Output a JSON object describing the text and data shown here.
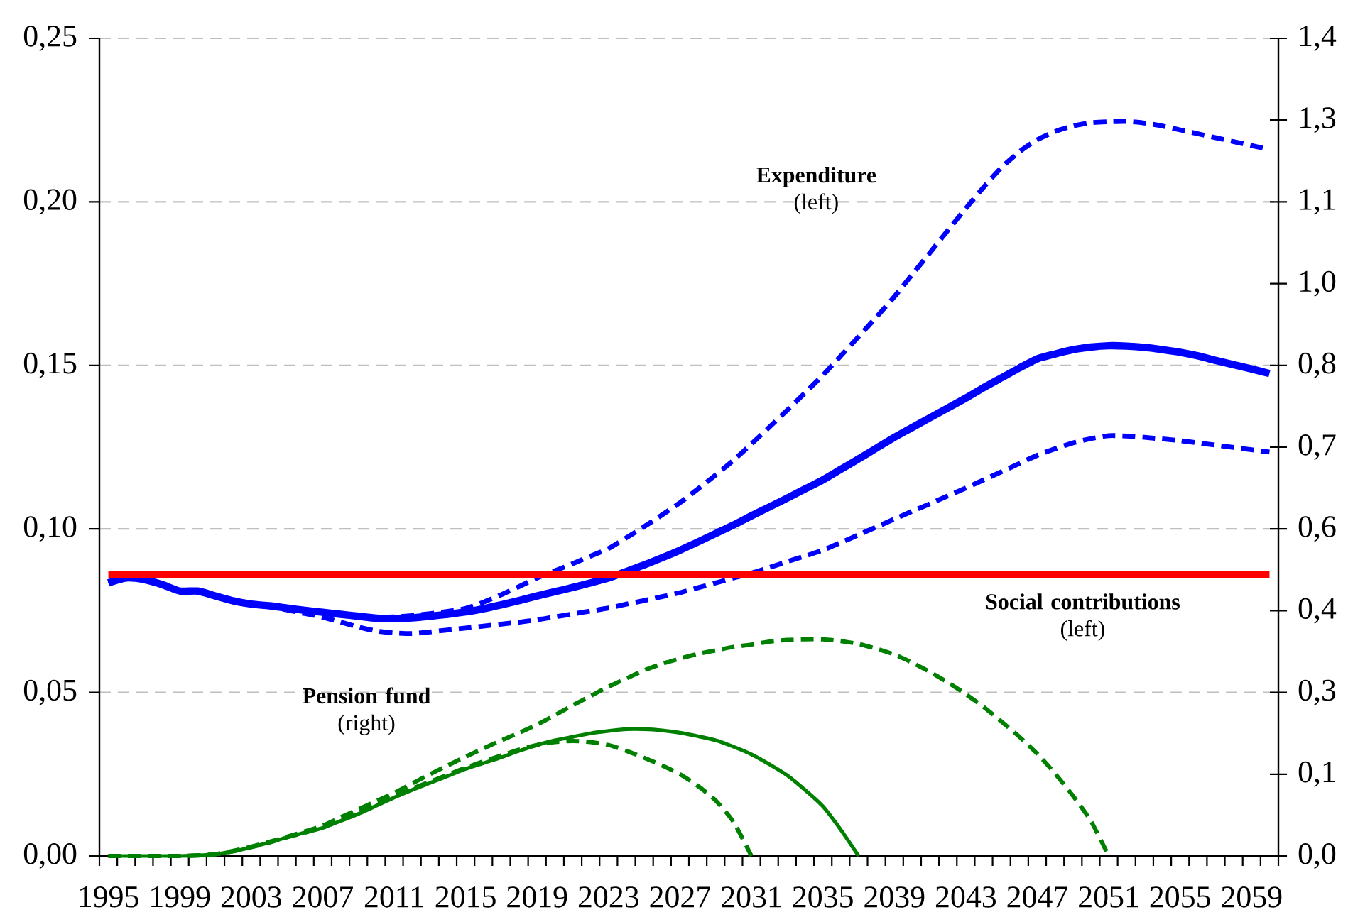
{
  "chart_data": {
    "type": "line",
    "categories": [
      "1995",
      null,
      null,
      null,
      "1999",
      null,
      null,
      null,
      "2003",
      null,
      null,
      null,
      "2007",
      null,
      null,
      null,
      "2011",
      null,
      null,
      null,
      "2015",
      null,
      null,
      null,
      "2019",
      null,
      null,
      null,
      "2023",
      null,
      null,
      null,
      "2027",
      null,
      null,
      null,
      "2031",
      null,
      null,
      null,
      "2035",
      null,
      null,
      null,
      "2039",
      null,
      null,
      null,
      "2043",
      null,
      null,
      null,
      "2047",
      null,
      null,
      null,
      "2051",
      null,
      null,
      null,
      "2055",
      null,
      null,
      null,
      "2059",
      null
    ],
    "ylim": [
      0,
      0.25
    ],
    "yticks": [
      {
        "value": 0,
        "label": "0,00"
      },
      {
        "value": 0.05,
        "label": "0,05"
      },
      {
        "value": 0.1,
        "label": "0,10"
      },
      {
        "value": 0.15,
        "label": "0,15"
      },
      {
        "value": 0.2,
        "label": "0,20"
      },
      {
        "value": 0.25,
        "label": "0,25"
      }
    ],
    "y2lim": [
      0,
      1.4
    ],
    "y2ticks": [
      {
        "value": 0,
        "label": "0,0"
      },
      {
        "value": 0.14,
        "label": "0,1"
      },
      {
        "value": 0.28,
        "label": "0,3"
      },
      {
        "value": 0.42,
        "label": "0,4"
      },
      {
        "value": 0.56,
        "label": "0,6"
      },
      {
        "value": 0.7,
        "label": "0,7"
      },
      {
        "value": 0.84,
        "label": "0,8"
      },
      {
        "value": 0.98,
        "label": "1,0"
      },
      {
        "value": 1.12,
        "label": "1,1"
      },
      {
        "value": 1.26,
        "label": "1,3"
      },
      {
        "value": 1.4,
        "label": "1,4"
      }
    ],
    "grid": "y",
    "annotations": [
      "**Expenditure** (left)",
      "**Social contributions** (left)",
      "**Pension fund** (right)"
    ],
    "series": [
      {
        "color": "#0000ff",
        "line_style": "solid",
        "values": [
          0.0835,
          0.085,
          0.0845,
          0.083,
          0.081,
          0.081,
          0.0795,
          0.078,
          0.077,
          0.0765,
          0.0758,
          0.0751,
          0.0745,
          0.0739,
          0.0733,
          0.0727,
          0.0726,
          0.0728,
          0.0733,
          0.0739,
          0.0746,
          0.0756,
          0.0768,
          0.0781,
          0.0795,
          0.0808,
          0.0821,
          0.0835,
          0.085,
          0.087,
          0.089,
          0.0912,
          0.0935,
          0.096,
          0.0986,
          0.1012,
          0.104,
          0.1067,
          0.1094,
          0.1122,
          0.115,
          0.1182,
          0.1214,
          0.1247,
          0.128,
          0.131,
          0.134,
          0.137,
          0.14,
          0.1432,
          0.1462,
          0.1492,
          0.152,
          0.1535,
          0.1548,
          0.1556,
          0.156,
          0.1559,
          0.1555,
          0.1548,
          0.154,
          0.1529,
          0.1515,
          0.1502,
          0.1489,
          0.1475
        ]
      },
      {
        "color": "#0000ff",
        "line_style": "dashed",
        "values": [
          0.0835,
          0.085,
          0.0845,
          0.083,
          0.081,
          0.081,
          0.0795,
          0.078,
          0.077,
          0.0765,
          0.0758,
          0.0751,
          0.0745,
          0.0739,
          0.0734,
          0.073,
          0.0731,
          0.0735,
          0.0741,
          0.0748,
          0.0757,
          0.0776,
          0.0799,
          0.0824,
          0.085,
          0.0872,
          0.0894,
          0.0917,
          0.094,
          0.0973,
          0.1007,
          0.1043,
          0.108,
          0.1122,
          0.1165,
          0.121,
          0.126,
          0.1311,
          0.1363,
          0.1416,
          0.147,
          0.1529,
          0.1588,
          0.1648,
          0.171,
          0.1778,
          0.1845,
          0.1913,
          0.198,
          0.2045,
          0.2105,
          0.2153,
          0.219,
          0.2215,
          0.2232,
          0.2242,
          0.2245,
          0.2246,
          0.2241,
          0.2232,
          0.222,
          0.2208,
          0.2196,
          0.2184,
          0.2172,
          0.216
        ]
      },
      {
        "color": "#0000ff",
        "line_style": "dashed",
        "values": [
          0.0835,
          0.085,
          0.0845,
          0.083,
          0.081,
          0.081,
          0.0795,
          0.078,
          0.077,
          0.0763,
          0.0752,
          0.0741,
          0.073,
          0.0715,
          0.07,
          0.0688,
          0.0682,
          0.068,
          0.0685,
          0.0691,
          0.0697,
          0.0703,
          0.0709,
          0.0715,
          0.0722,
          0.0731,
          0.074,
          0.0749,
          0.0758,
          0.077,
          0.0781,
          0.0793,
          0.0805,
          0.082,
          0.0835,
          0.085,
          0.0865,
          0.0882,
          0.09,
          0.0917,
          0.0935,
          0.0958,
          0.0982,
          0.1006,
          0.103,
          0.1054,
          0.1077,
          0.1101,
          0.1125,
          0.115,
          0.1175,
          0.12,
          0.1225,
          0.1245,
          0.1263,
          0.1276,
          0.1285,
          0.1284,
          0.128,
          0.1275,
          0.127,
          0.1263,
          0.1256,
          0.1249,
          0.1242,
          0.1235
        ]
      },
      {
        "color": "#ff0000",
        "line_style": "solid",
        "values": [
          0.086,
          0.086,
          0.086,
          0.086,
          0.086,
          0.086,
          0.086,
          0.086,
          0.086,
          0.086,
          0.086,
          0.086,
          0.086,
          0.086,
          0.086,
          0.086,
          0.086,
          0.086,
          0.086,
          0.086,
          0.086,
          0.086,
          0.086,
          0.086,
          0.086,
          0.086,
          0.086,
          0.086,
          0.086,
          0.086,
          0.086,
          0.086,
          0.086,
          0.086,
          0.086,
          0.086,
          0.086,
          0.086,
          0.086,
          0.086,
          0.086,
          0.086,
          0.086,
          0.086,
          0.086,
          0.086,
          0.086,
          0.086,
          0.086,
          0.086,
          0.086,
          0.086,
          0.086,
          0.086,
          0.086,
          0.086,
          0.086,
          0.086,
          0.086,
          0.086,
          0.086,
          0.086,
          0.086,
          0.086,
          0.086,
          0.086
        ]
      },
      {
        "color": "#008000",
        "line_style": "solid",
        "axis": "y2",
        "values": [
          0,
          0,
          0,
          0,
          0,
          0.001,
          0.003,
          0.008,
          0.015,
          0.023,
          0.032,
          0.04,
          0.048,
          0.06,
          0.072,
          0.086,
          0.1,
          0.113,
          0.125,
          0.137,
          0.149,
          0.159,
          0.169,
          0.18,
          0.19,
          0.198,
          0.204,
          0.21,
          0.214,
          0.217,
          0.217,
          0.215,
          0.211,
          0.205,
          0.198,
          0.187,
          0.174,
          0.157,
          0.138,
          0.113,
          0.085,
          0.045,
          0,
          null,
          null,
          null,
          null,
          null,
          null,
          null,
          null,
          null,
          null,
          null,
          null,
          null,
          null,
          null,
          null,
          null,
          null,
          null,
          null,
          null,
          null,
          null
        ]
      },
      {
        "color": "#008000",
        "line_style": "dashed",
        "axis": "y2",
        "values": [
          0,
          0,
          0,
          0,
          0,
          0.001,
          0.003,
          0.009,
          0.016,
          0.024,
          0.033,
          0.042,
          0.052,
          0.066,
          0.08,
          0.094,
          0.108,
          0.124,
          0.14,
          0.155,
          0.17,
          0.184,
          0.198,
          0.211,
          0.225,
          0.241,
          0.258,
          0.274,
          0.29,
          0.304,
          0.318,
          0.329,
          0.338,
          0.346,
          0.352,
          0.358,
          0.362,
          0.367,
          0.37,
          0.371,
          0.371,
          0.368,
          0.363,
          0.355,
          0.345,
          0.331,
          0.315,
          0.297,
          0.277,
          0.255,
          0.23,
          0.204,
          0.175,
          0.141,
          0.103,
          0.06,
          0,
          null,
          null,
          null,
          null,
          null,
          null,
          null,
          null,
          null
        ]
      },
      {
        "color": "#008000",
        "line_style": "dashed",
        "axis": "y2",
        "values": [
          0,
          0,
          0,
          0,
          0,
          0.001,
          0.003,
          0.008,
          0.015,
          0.023,
          0.032,
          0.04,
          0.049,
          0.061,
          0.074,
          0.088,
          0.102,
          0.115,
          0.127,
          0.139,
          0.151,
          0.162,
          0.172,
          0.182,
          0.19,
          0.195,
          0.197,
          0.195,
          0.19,
          0.18,
          0.168,
          0.155,
          0.14,
          0.12,
          0.095,
          0.058,
          0,
          null,
          null,
          null,
          null,
          null,
          null,
          null,
          null,
          null,
          null,
          null,
          null,
          null,
          null,
          null,
          null,
          null,
          null,
          null,
          null,
          null,
          null,
          null,
          null,
          null,
          null,
          null,
          null,
          null
        ]
      }
    ]
  }
}
